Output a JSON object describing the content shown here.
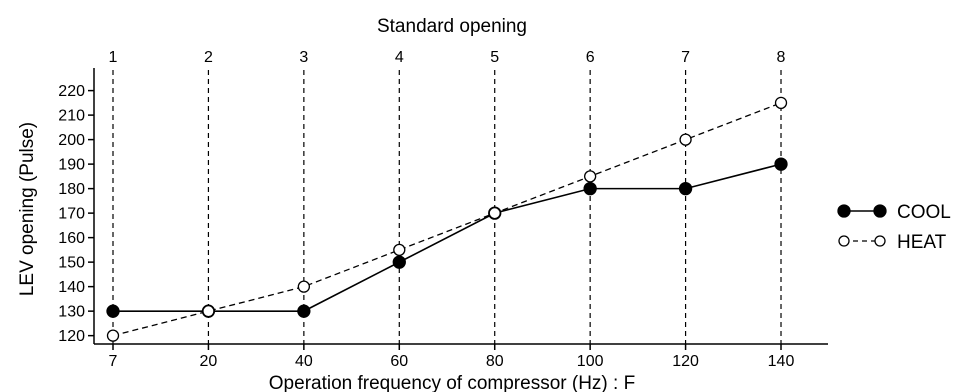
{
  "chart_data": {
    "type": "line",
    "title": "",
    "top_axis_title": "Standard opening",
    "top_tick_labels": [
      "1",
      "2",
      "3",
      "4",
      "5",
      "6",
      "7",
      "8"
    ],
    "xlabel": "Operation frequency of compressor (Hz) : F",
    "ylabel": "LEV opening (Pulse)",
    "categories": [
      "7",
      "20",
      "40",
      "60",
      "80",
      "100",
      "120",
      "140"
    ],
    "yticks": [
      120,
      130,
      140,
      150,
      160,
      170,
      180,
      190,
      200,
      210,
      220
    ],
    "ylim": [
      117,
      228
    ],
    "grid": "vertical dashed at each standard opening",
    "legend_position": "right",
    "series": [
      {
        "name": "COOL",
        "values": [
          130,
          130,
          130,
          150,
          170,
          180,
          180,
          190
        ],
        "line": "solid",
        "marker": "filled-circle",
        "color": "#000000"
      },
      {
        "name": "HEAT",
        "values": [
          120,
          130,
          140,
          155,
          170,
          185,
          200,
          215
        ],
        "line": "dashed",
        "marker": "open-circle",
        "color": "#000000"
      }
    ]
  }
}
